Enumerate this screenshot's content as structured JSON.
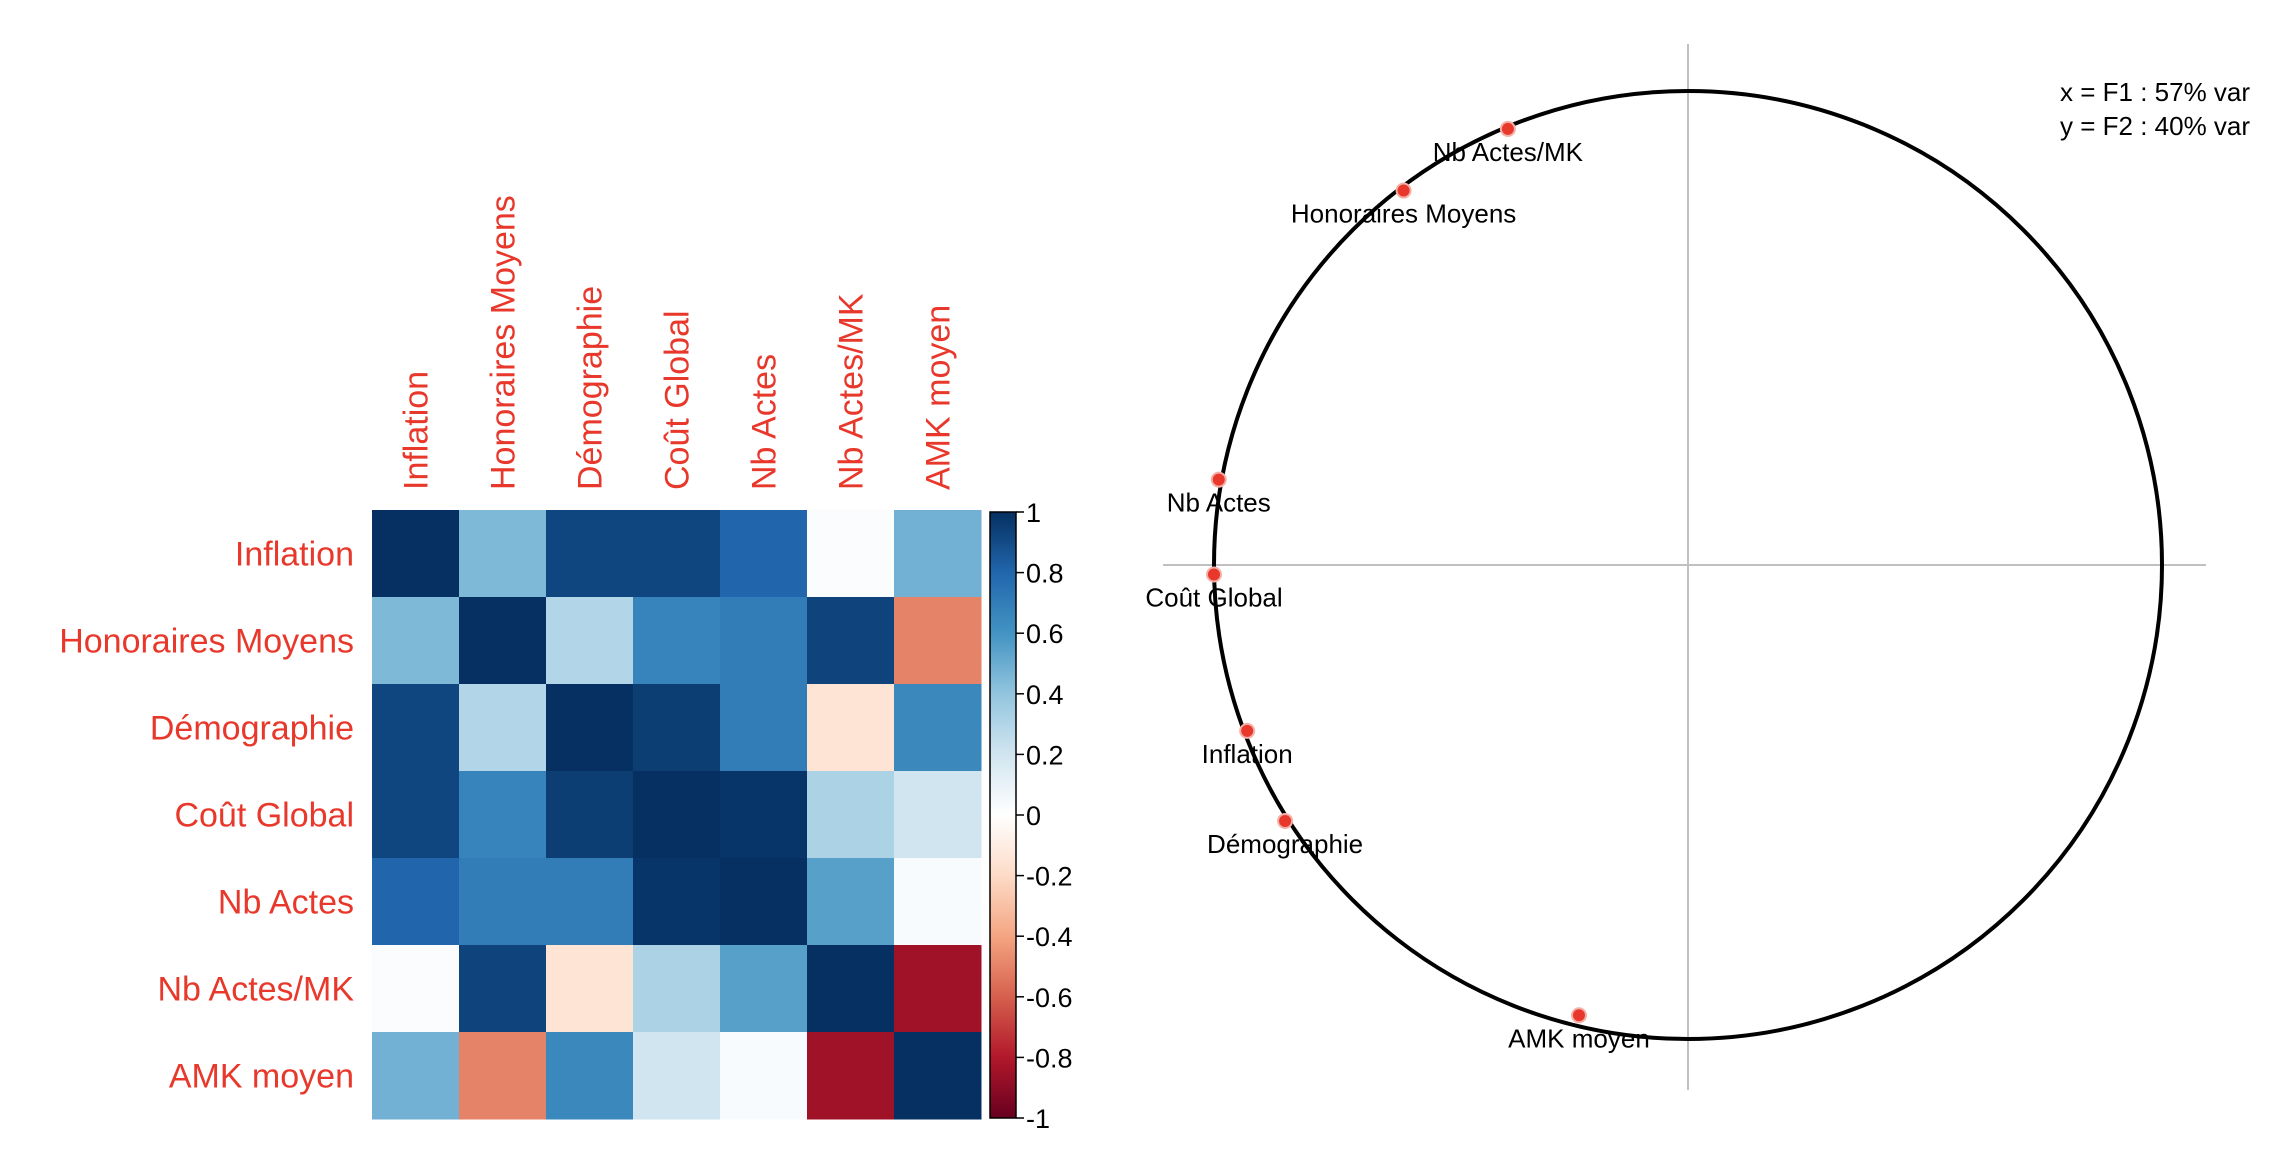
{
  "chart_data": [
    {
      "type": "heatmap",
      "variables": [
        "Inflation",
        "Honoraires Moyens",
        "Démographie",
        "Coût Global",
        "Nb Actes",
        "Nb Actes/MK",
        "AMK moyen"
      ],
      "matrix": [
        [
          1.0,
          0.45,
          0.92,
          0.92,
          0.8,
          0.02,
          0.48
        ],
        [
          0.45,
          1.0,
          0.3,
          0.67,
          0.7,
          0.93,
          -0.5
        ],
        [
          0.92,
          0.3,
          1.0,
          0.95,
          0.7,
          -0.15,
          0.65
        ],
        [
          0.92,
          0.67,
          0.95,
          1.0,
          0.98,
          0.32,
          0.2
        ],
        [
          0.8,
          0.7,
          0.7,
          0.98,
          1.0,
          0.55,
          0.03
        ],
        [
          0.02,
          0.93,
          -0.15,
          0.32,
          0.55,
          1.0,
          -0.85
        ],
        [
          0.48,
          -0.5,
          0.65,
          0.2,
          0.03,
          -0.85,
          1.0
        ]
      ],
      "colorbar_ticks": [
        "1",
        "0.8",
        "0.6",
        "0.4",
        "0.2",
        "0",
        "-0.2",
        "-0.4",
        "-0.6",
        "-0.8",
        "-1"
      ],
      "colorbar_range": [
        -1,
        1
      ],
      "label_color": "#e8382b",
      "colors": {
        "negative": "#67001f",
        "neutral": "#ffffff",
        "positive": "#053061"
      }
    },
    {
      "type": "scatter",
      "subtype": "correlation-circle",
      "points": [
        {
          "label": "Nb Actes/MK",
          "x": -0.38,
          "y": 0.92
        },
        {
          "label": "Honoraires Moyens",
          "x": -0.6,
          "y": 0.79
        },
        {
          "label": "Nb Actes",
          "x": -0.99,
          "y": 0.18
        },
        {
          "label": "Coût Global",
          "x": -1.0,
          "y": -0.02
        },
        {
          "label": "Inflation",
          "x": -0.93,
          "y": -0.35
        },
        {
          "label": "Démographie",
          "x": -0.85,
          "y": -0.54
        },
        {
          "label": "AMK moyen",
          "x": -0.23,
          "y": -0.95
        }
      ],
      "annotations": [
        "x = F1 : 57% var",
        "y = F2 : 40% var"
      ],
      "xlim": [
        -1,
        1
      ],
      "ylim": [
        -1,
        1
      ],
      "point_color": "#e8382b",
      "axis_color": "#c0c0c0"
    }
  ]
}
